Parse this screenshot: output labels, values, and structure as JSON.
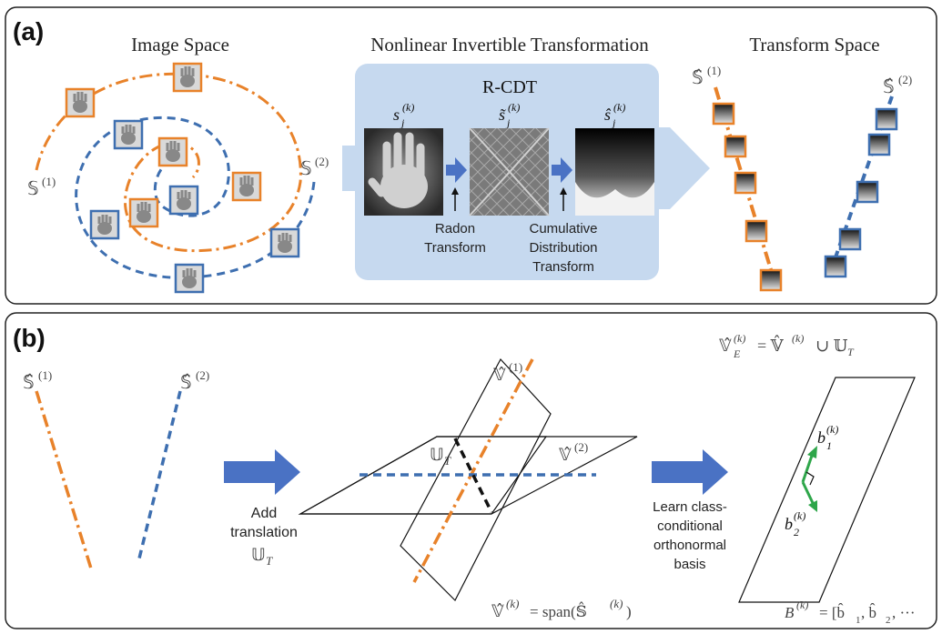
{
  "panel_a": {
    "label": "(a)",
    "image_space_title": "Image Space",
    "transform_title": "Nonlinear Invertible Transformation",
    "transform_space_title": "Transform Space",
    "rcdt_title": "R-CDT",
    "s1": "𝕊",
    "s2": "𝕊",
    "s1_sup": "(1)",
    "s2_sup": "(2)",
    "shat1": "𝕊̂",
    "shat2": "𝕊̂",
    "sym_s": "s",
    "sym_s_tilde": "s̃",
    "sym_s_hat": "ŝ",
    "sym_sub": "j",
    "sym_sup": "(k)",
    "radon_line1": "Radon",
    "radon_line2": "Transform",
    "cdt_line1": "Cumulative",
    "cdt_line2": "Distribution",
    "cdt_line3": "Transform"
  },
  "panel_b": {
    "label": "(b)",
    "shat1": "𝕊̂",
    "shat2": "𝕊̂",
    "sup1": "(1)",
    "sup2": "(2)",
    "add_line1": "Add",
    "add_line2": "translation",
    "ut": "𝕌",
    "ut_sub": "T",
    "v1": "𝕍̂",
    "v2": "𝕍̂",
    "v_eq_lhs": "𝕍̂",
    "v_eq_sup": "(k)",
    "v_eq_rhs": "= span(𝕊̂",
    "v_eq_rhs_sup": "(k)",
    "v_eq_close": ")",
    "learn_line1": "Learn class-",
    "learn_line2": "conditional",
    "learn_line3": "orthonormal",
    "learn_line4": "basis",
    "ve_lhs": "𝕍̂",
    "ve_sub": "E",
    "ve_sup": "(k)",
    "ve_rhs": "= 𝕍̂",
    "ve_rhs_sup": "(k)",
    "ve_union": "∪ 𝕌",
    "ve_union_sub": "T",
    "b_sym": "b",
    "b1_sub": "1",
    "b2_sub": "2",
    "b_sup": "(k)",
    "basis_lhs": "B",
    "basis_sup": "(k)",
    "basis_rhs": "= [b̂",
    "basis_mid": ", b̂",
    "basis_end": ", ···"
  },
  "colors": {
    "orange": "#e8822a",
    "blue": "#3e6fb0",
    "arrow_blue": "#4a72c4",
    "panel_bg": "#c6d9ef",
    "green": "#2ea64a"
  }
}
